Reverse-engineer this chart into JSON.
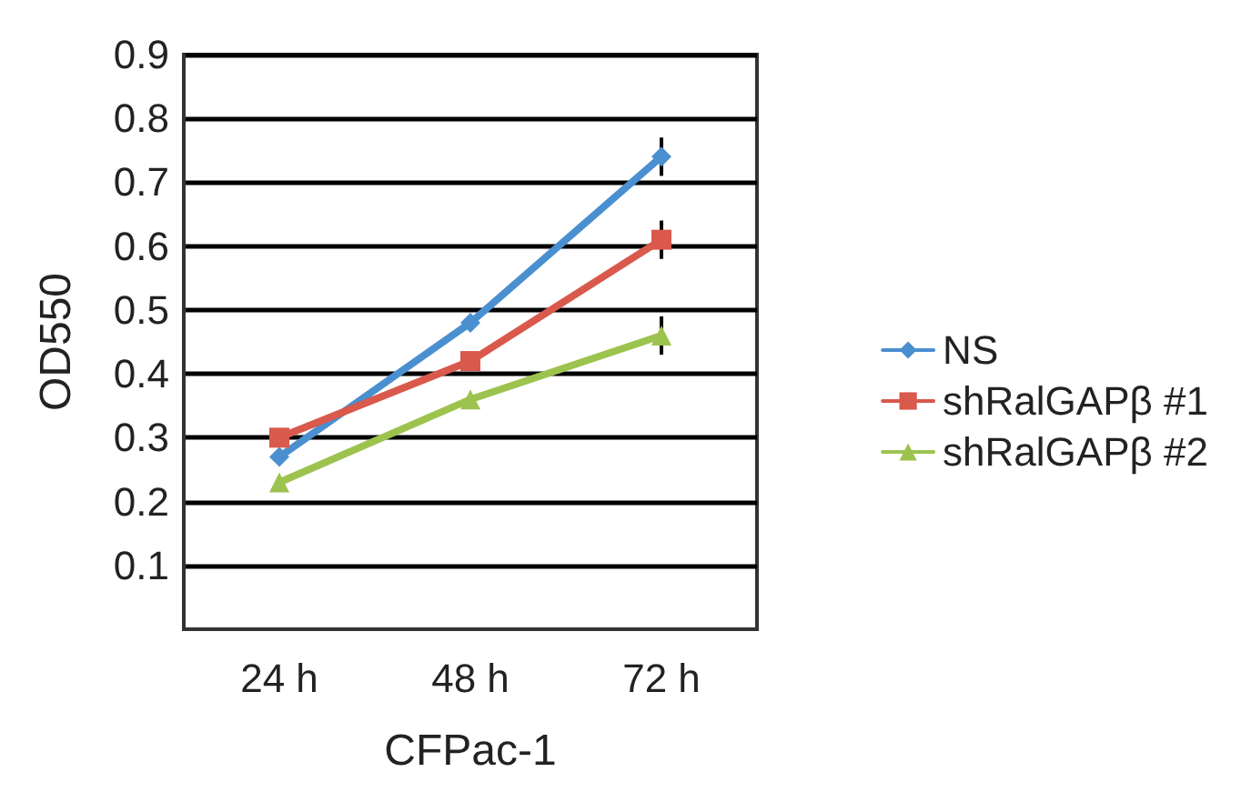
{
  "chart_data": {
    "type": "line",
    "xlabel": "CFPac-1",
    "ylabel": "OD550",
    "categories": [
      "24 h",
      "48 h",
      "72 h"
    ],
    "series": [
      {
        "name": "NS",
        "color": "#4a8fd0",
        "marker": "diamond",
        "values": [
          0.27,
          0.48,
          0.74
        ],
        "errors": [
          null,
          null,
          0.03
        ]
      },
      {
        "name": "shRalGAPβ #1",
        "color": "#d9594c",
        "marker": "square",
        "values": [
          0.3,
          0.42,
          0.61
        ],
        "errors": [
          null,
          null,
          0.03
        ]
      },
      {
        "name": "shRalGAPβ #2",
        "color": "#9dc34f",
        "marker": "triangle",
        "values": [
          0.23,
          0.36,
          0.46
        ],
        "errors": [
          null,
          null,
          0.03
        ]
      }
    ],
    "ylim": [
      0,
      0.9
    ],
    "yticks": [
      0.1,
      0.2,
      0.3,
      0.4,
      0.5,
      0.6,
      0.7,
      0.8,
      0.9
    ],
    "grid": "y",
    "legend": "right"
  }
}
